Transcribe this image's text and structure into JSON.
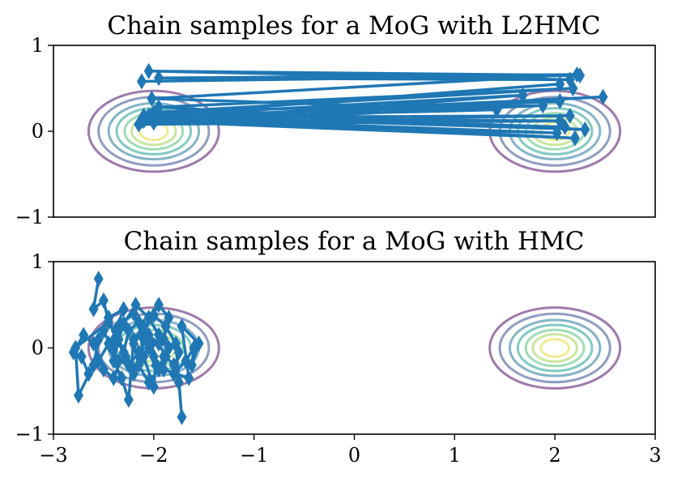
{
  "colors": {
    "samples": "#1f77b4",
    "contours": [
      "#7e4e90",
      "#6a7cac",
      "#5b9bb5",
      "#58b8ad",
      "#7fd09c",
      "#b5dd7f",
      "#e8e56c"
    ],
    "axes": "#000000"
  },
  "chart_data": [
    {
      "type": "scatter",
      "title": "Chain samples for a MoG with L2HMC",
      "xlim": [
        -3,
        3
      ],
      "ylim": [
        -1,
        1
      ],
      "yticks": [
        "1",
        "0",
        "−1"
      ],
      "show_xticks": false,
      "grid": false,
      "contours": {
        "centers": [
          [
            -2,
            0
          ],
          [
            2,
            0
          ]
        ],
        "sigma": 0.1,
        "level_x_radii": [
          0.65,
          0.55,
          0.45,
          0.37,
          0.29,
          0.22,
          0.14
        ]
      },
      "series": [
        {
          "marker": "thin-diamond",
          "line": "connected",
          "x": [
            -2.12,
            2.25,
            -2.05,
            2.15,
            -1.95,
            2.22,
            -2.02,
            1.42,
            -2.08,
            2.48,
            -2.1,
            2.05,
            -2.0,
            2.18,
            -1.95,
            2.3,
            -2.03,
            1.68,
            -2.15,
            2.05,
            -1.92,
            2.15,
            -2.0,
            1.88,
            -2.05,
            2.1,
            -1.97,
            2.02,
            -2.12,
            2.2,
            -2.1,
            2.05
          ],
          "y": [
            0.58,
            0.65,
            0.7,
            0.6,
            0.62,
            0.66,
            0.38,
            0.25,
            0.15,
            0.4,
            0.12,
            0.35,
            0.22,
            0.5,
            0.28,
            0.02,
            0.18,
            0.42,
            0.08,
            0.12,
            0.16,
            0.18,
            0.1,
            0.3,
            0.18,
            0.05,
            0.15,
            -0.02,
            0.12,
            -0.08,
            0.18,
            0.55
          ]
        }
      ]
    },
    {
      "type": "scatter",
      "title": "Chain samples for a MoG with HMC",
      "xlim": [
        -3,
        3
      ],
      "ylim": [
        -1,
        1
      ],
      "yticks": [
        "1",
        "0",
        "−1"
      ],
      "xticks": [
        "−3",
        "−2",
        "−1",
        "0",
        "1",
        "2",
        "3"
      ],
      "show_xticks": true,
      "grid": false,
      "contours": {
        "centers": [
          [
            -2,
            0
          ],
          [
            2,
            0
          ]
        ],
        "sigma": 0.1,
        "level_x_radii": [
          0.65,
          0.55,
          0.45,
          0.37,
          0.29,
          0.22,
          0.14
        ]
      },
      "series": [
        {
          "marker": "thin-diamond",
          "line": "connected",
          "x": [
            -2.55,
            -2.6,
            -2.5,
            -2.45,
            -2.78,
            -2.75,
            -2.6,
            -2.55,
            -2.45,
            -2.3,
            -2.38,
            -2.28,
            -2.2,
            -2.05,
            -2.12,
            -1.95,
            -1.85,
            -1.9,
            -1.75,
            -1.8,
            -1.68,
            -1.6,
            -1.62,
            -1.55,
            -1.72,
            -1.65,
            -1.9,
            -2.0,
            -2.1,
            -2.2,
            -2.35,
            -2.45,
            -2.55,
            -2.65,
            -2.72,
            -2.8,
            -2.7,
            -2.6,
            -2.5,
            -2.4,
            -2.3,
            -2.25,
            -2.15,
            -2.1,
            -2.0,
            -1.98,
            -2.02,
            -2.1,
            -2.2,
            -2.25,
            -2.32,
            -2.4,
            -2.35,
            -2.3,
            -2.18,
            -2.05,
            -1.95,
            -1.85,
            -1.9,
            -1.95,
            -2.05,
            -2.15,
            -2.2,
            -2.1,
            -2.0,
            -1.88,
            -1.78,
            -1.72,
            -1.75,
            -1.8,
            -1.88,
            -1.95,
            -2.05,
            -2.15,
            -2.25,
            -2.35,
            -2.42,
            -2.5,
            -2.45,
            -2.38,
            -2.3,
            -2.2,
            -2.12,
            -2.05
          ],
          "y": [
            0.8,
            0.45,
            0.55,
            0.3,
            0.0,
            -0.55,
            -0.2,
            0.1,
            0.35,
            0.45,
            0.2,
            -0.1,
            -0.3,
            0.0,
            0.15,
            0.5,
            0.35,
            0.1,
            -0.05,
            -0.3,
            -0.15,
            0.0,
            -0.2,
            0.05,
            0.25,
            -0.35,
            -0.25,
            -0.1,
            0.1,
            0.4,
            0.25,
            0.05,
            -0.15,
            -0.3,
            -0.1,
            -0.05,
            0.15,
            0.05,
            -0.25,
            -0.35,
            -0.05,
            0.2,
            0.3,
            -0.1,
            -0.45,
            -0.2,
            0.05,
            0.25,
            0.1,
            -0.6,
            -0.35,
            -0.15,
            0.1,
            0.28,
            0.5,
            0.35,
            0.15,
            0.0,
            -0.1,
            -0.25,
            -0.4,
            -0.2,
            0.05,
            0.2,
            0.38,
            0.25,
            0.05,
            -0.8,
            -0.4,
            -0.2,
            -0.1,
            0.05,
            0.15,
            -0.05,
            -0.2,
            -0.15,
            0.0,
            0.2,
            0.35,
            0.1,
            -0.05,
            -0.25,
            -0.1,
            0.0
          ]
        }
      ]
    }
  ]
}
